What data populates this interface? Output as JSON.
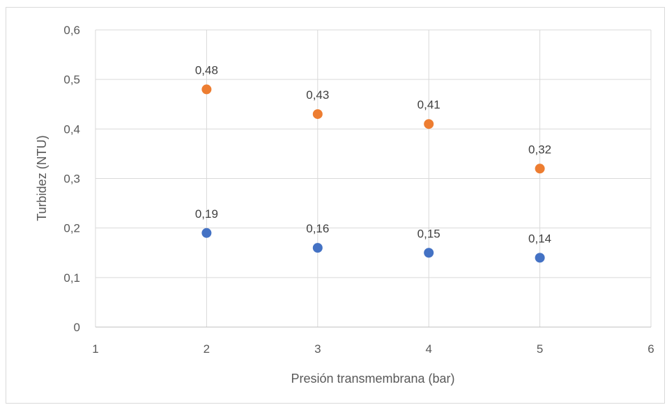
{
  "chart_data": {
    "type": "scatter",
    "title": "",
    "xlabel": "Presión transmembrana (bar)",
    "ylabel": "Turbidez (NTU)",
    "xlim": [
      1,
      6
    ],
    "ylim": [
      0,
      0.6
    ],
    "x_ticks": [
      "1",
      "2",
      "3",
      "4",
      "5",
      "6"
    ],
    "y_ticks": [
      "0",
      "0,1",
      "0,2",
      "0,3",
      "0,4",
      "0,5",
      "0,6"
    ],
    "grid": "vertical and horizontal",
    "legend": "none",
    "series": [
      {
        "color": "#ED7D31",
        "x": [
          2,
          3,
          4,
          5
        ],
        "y": [
          0.48,
          0.43,
          0.41,
          0.32
        ],
        "labels": [
          "0,48",
          "0,43",
          "0,41",
          "0,32"
        ]
      },
      {
        "color": "#4472C4",
        "x": [
          2,
          3,
          4,
          5
        ],
        "y": [
          0.19,
          0.16,
          0.15,
          0.14
        ],
        "labels": [
          "0,19",
          "0,16",
          "0,15",
          "0,14"
        ]
      }
    ]
  }
}
